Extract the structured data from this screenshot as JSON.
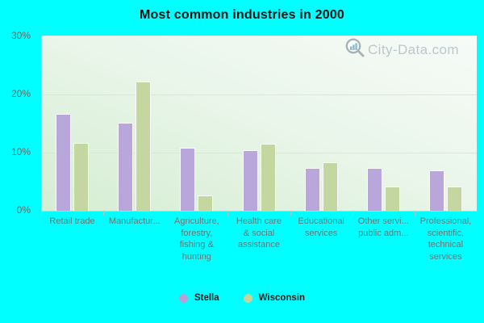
{
  "page": {
    "background": "#00ffff"
  },
  "title": "Most common industries in 2000",
  "watermark": {
    "text": "City-Data.com",
    "icon": "magnifier-bar-chart-icon"
  },
  "y_axis": {
    "tick_labels": [
      "30%",
      "20%",
      "10%",
      "0%"
    ],
    "tick_values": [
      30,
      20,
      10,
      0
    ]
  },
  "legend": {
    "items": [
      {
        "label": "Stella",
        "color": "#b4a1d5"
      },
      {
        "label": "Wisconsin",
        "color": "#c3d59d"
      }
    ]
  },
  "chart_data": {
    "type": "bar",
    "title": "Most common industries in 2000",
    "categories": [
      "Retail trade",
      "Manufactur...",
      "Agriculture,\nforestry,\nfishing &\nhunting",
      "Health care\n& social\nassistance",
      "Educational\nservices",
      "Other servi...\npublic adm...",
      "Professional,\nscientific,\ntechnical\nservices"
    ],
    "series": [
      {
        "name": "Stella",
        "color": "#b9a6db",
        "values": [
          16.7,
          15.2,
          10.8,
          10.4,
          7.3,
          7.3,
          6.9
        ]
      },
      {
        "name": "Wisconsin",
        "color": "#c5d7a1",
        "values": [
          11.7,
          22.2,
          2.7,
          11.5,
          8.4,
          4.1,
          4.1
        ]
      }
    ],
    "xlabel": "",
    "ylabel": "",
    "ylim": [
      0,
      30
    ],
    "grid": "horizontal-light",
    "gridline_color": "#e4dee8",
    "plot_background": "green-white-gradient",
    "legend_position": "bottom"
  }
}
